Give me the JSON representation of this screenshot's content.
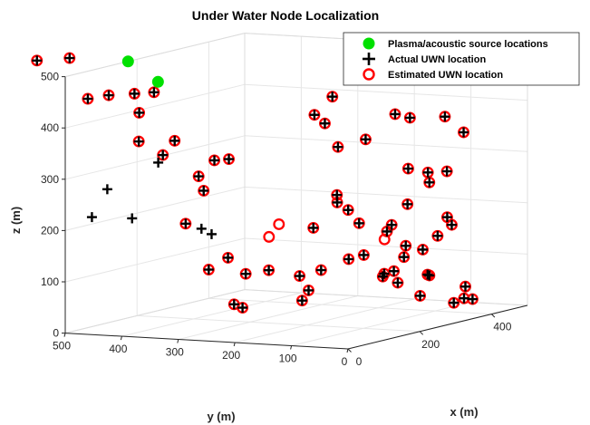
{
  "chart_data": {
    "type": "scatter3d",
    "title": "Under Water Node Localization",
    "xlabel": "x (m)",
    "ylabel": "y (m)",
    "zlabel": "z (m)",
    "xlim": [
      0,
      500
    ],
    "ylim": [
      0,
      500
    ],
    "zlim": [
      0,
      500
    ],
    "xticks": [
      "0",
      "200",
      "400"
    ],
    "yticks": [
      "0",
      "100",
      "200",
      "300",
      "400",
      "500"
    ],
    "zticks": [
      "0",
      "100",
      "200",
      "300",
      "400",
      "500"
    ],
    "grid": true,
    "legend_position": "top-right",
    "colors": {
      "source": "#00e000",
      "estimated": "#ff0000",
      "actual": "#000000",
      "axes": "#262626",
      "grid": "#e6e6e6"
    },
    "series": [
      {
        "name": "Plasma/acoustic source locations",
        "marker": "filled-circle",
        "points": [
          [
            0,
            336,
            500
          ],
          [
            175,
            500,
            500
          ]
        ]
      },
      {
        "name": "Actual UWN location",
        "marker": "plus",
        "points": [
          [
            -8,
            545,
            530
          ],
          [
            42,
            519,
            528
          ],
          [
            -8,
            455,
            461
          ],
          [
            55,
            458,
            457
          ],
          [
            40,
            403,
            466
          ],
          [
            25,
            359,
            474
          ],
          [
            8,
            375,
            380
          ],
          [
            23,
            342,
            353
          ],
          [
            25,
            280,
            315
          ],
          [
            80,
            420,
            421
          ],
          [
            100,
            370,
            366
          ],
          [
            72,
            282,
            338
          ],
          [
            125,
            290,
            331
          ],
          [
            80,
            306,
            276
          ],
          [
            5,
            456,
            228
          ],
          [
            10,
            432,
            283
          ],
          [
            70,
            380,
            328
          ],
          [
            88,
            315,
            200
          ],
          [
            55,
            322,
            215
          ],
          [
            80,
            263,
            148
          ],
          [
            28,
            259,
            203
          ],
          [
            50,
            278,
            129
          ],
          [
            68,
            224,
            121
          ],
          [
            190,
            180,
            413
          ],
          [
            210,
            50,
            419
          ],
          [
            213,
            104,
            366
          ],
          [
            216,
            178,
            392
          ],
          [
            270,
            0,
            407
          ],
          [
            275,
            65,
            400
          ],
          [
            240,
            180,
            440
          ],
          [
            330,
            5,
            366
          ],
          [
            180,
            132,
            355
          ],
          [
            196,
            144,
            258
          ],
          [
            222,
            160,
            238
          ],
          [
            210,
            133,
            227
          ],
          [
            278,
            70,
            300
          ],
          [
            262,
            25,
            298
          ],
          [
            326,
            32,
            289
          ],
          [
            300,
            15,
            205
          ],
          [
            295,
            110,
            185
          ],
          [
            296,
            160,
            123
          ],
          [
            267,
            217,
            95
          ],
          [
            200,
            267,
            103
          ],
          [
            215,
            222,
            92
          ],
          [
            140,
            170,
            60
          ],
          [
            290,
            120,
            90
          ],
          [
            358,
            95,
            127
          ],
          [
            360,
            45,
            178
          ],
          [
            246,
            54,
            156
          ],
          [
            274,
            75,
            128
          ],
          [
            400,
            110,
            250
          ],
          [
            410,
            155,
            203
          ],
          [
            365,
            212,
            170
          ],
          [
            389,
            178,
            152
          ],
          [
            360,
            70,
            155
          ],
          [
            345,
            75,
            80
          ],
          [
            330,
            148,
            76
          ],
          [
            390,
            120,
            30
          ],
          [
            380,
            36,
            32
          ],
          [
            342,
            30,
            30
          ],
          [
            410,
            40,
            25
          ],
          [
            395,
            110,
            71
          ],
          [
            327,
            0,
            66
          ],
          [
            323,
            117,
            67
          ],
          [
            250,
            220,
            180
          ],
          [
            120,
            75,
            150
          ],
          [
            175,
            30,
            120
          ],
          [
            95,
            130,
            90
          ],
          [
            100,
            250,
            48
          ],
          [
            108,
            270,
            52
          ],
          [
            5,
            385,
            230
          ]
        ]
      },
      {
        "name": "Estimated UWN location",
        "marker": "open-circle",
        "points": [
          [
            -8,
            545,
            530
          ],
          [
            42,
            519,
            528
          ],
          [
            -8,
            455,
            461
          ],
          [
            55,
            458,
            457
          ],
          [
            40,
            403,
            466
          ],
          [
            25,
            359,
            474
          ],
          [
            8,
            375,
            380
          ],
          [
            23,
            342,
            353
          ],
          [
            25,
            280,
            315
          ],
          [
            80,
            420,
            421
          ],
          [
            100,
            370,
            366
          ],
          [
            72,
            282,
            338
          ],
          [
            125,
            290,
            331
          ],
          [
            80,
            306,
            276
          ],
          [
            55,
            322,
            215
          ],
          [
            80,
            263,
            148
          ],
          [
            50,
            278,
            129
          ],
          [
            68,
            224,
            121
          ],
          [
            190,
            180,
            413
          ],
          [
            210,
            50,
            419
          ],
          [
            213,
            104,
            366
          ],
          [
            216,
            178,
            392
          ],
          [
            270,
            0,
            407
          ],
          [
            275,
            65,
            400
          ],
          [
            240,
            180,
            440
          ],
          [
            330,
            5,
            366
          ],
          [
            180,
            132,
            355
          ],
          [
            196,
            144,
            258
          ],
          [
            222,
            160,
            238
          ],
          [
            210,
            133,
            227
          ],
          [
            278,
            70,
            300
          ],
          [
            262,
            25,
            298
          ],
          [
            326,
            32,
            289
          ],
          [
            300,
            15,
            205
          ],
          [
            295,
            110,
            185
          ],
          [
            296,
            160,
            123
          ],
          [
            267,
            217,
            95
          ],
          [
            200,
            267,
            103
          ],
          [
            215,
            222,
            92
          ],
          [
            140,
            170,
            60
          ],
          [
            290,
            120,
            90
          ],
          [
            358,
            95,
            127
          ],
          [
            360,
            45,
            178
          ],
          [
            246,
            54,
            156
          ],
          [
            274,
            75,
            128
          ],
          [
            400,
            110,
            250
          ],
          [
            410,
            155,
            203
          ],
          [
            365,
            212,
            170
          ],
          [
            389,
            178,
            152
          ],
          [
            360,
            70,
            155
          ],
          [
            345,
            75,
            80
          ],
          [
            330,
            148,
            76
          ],
          [
            390,
            120,
            30
          ],
          [
            380,
            36,
            32
          ],
          [
            342,
            30,
            30
          ],
          [
            410,
            40,
            25
          ],
          [
            395,
            110,
            71
          ],
          [
            327,
            0,
            66
          ],
          [
            323,
            117,
            67
          ],
          [
            250,
            220,
            180
          ],
          [
            120,
            75,
            150
          ],
          [
            175,
            30,
            120
          ],
          [
            95,
            130,
            90
          ],
          [
            100,
            250,
            48
          ],
          [
            108,
            270,
            52
          ],
          [
            95,
            200,
            190
          ],
          [
            170,
            230,
            200
          ],
          [
            275,
            110,
            160
          ]
        ]
      }
    ]
  }
}
